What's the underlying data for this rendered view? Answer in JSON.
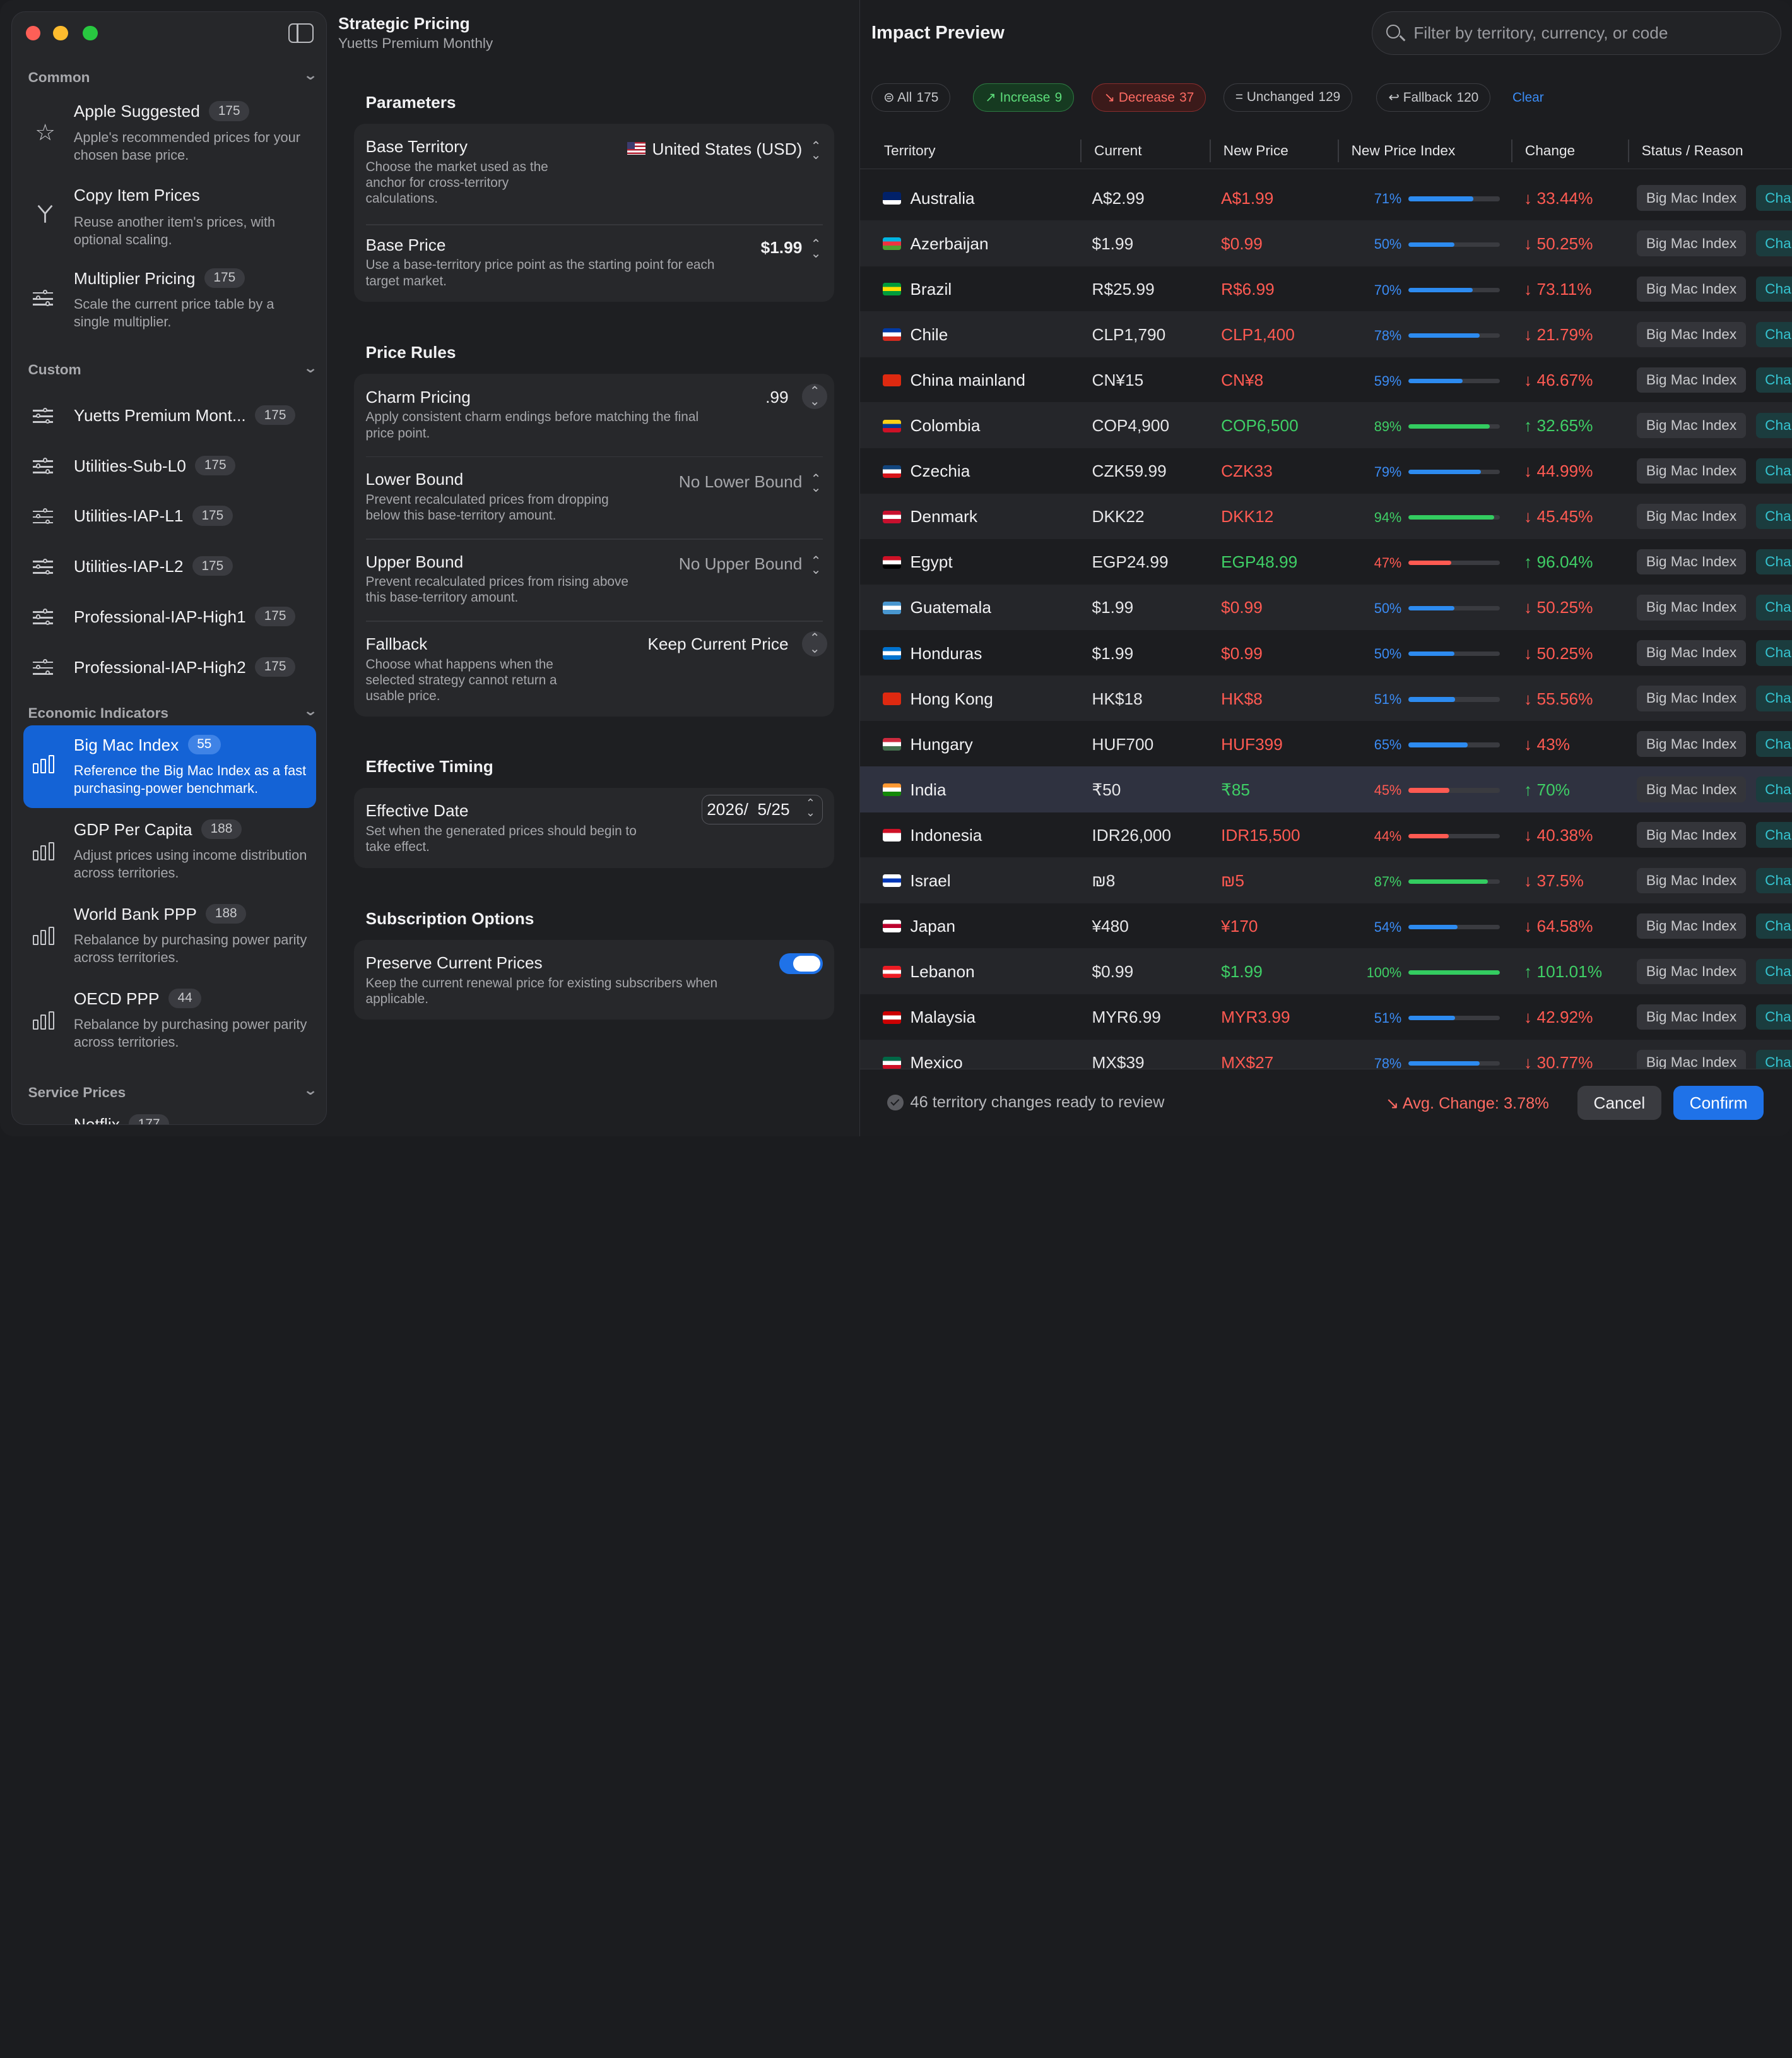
{
  "sidebar": {
    "sections": {
      "common": "Common",
      "custom": "Custom",
      "economic": "Economic Indicators",
      "service": "Service Prices"
    },
    "common_items": [
      {
        "title": "Apple Suggested",
        "badge": "175",
        "desc": "Apple's recommended prices for your chosen base price.",
        "icon": "star-icon"
      },
      {
        "title": "Copy Item Prices",
        "badge": "",
        "desc": "Reuse another item's prices, with optional scaling.",
        "icon": "branch-icon"
      },
      {
        "title": "Multiplier Pricing",
        "badge": "175",
        "desc": "Scale the current price table by a single multiplier.",
        "icon": "sliders-icon"
      }
    ],
    "custom_items": [
      {
        "title": "Yuetts Premium Mont...",
        "badge": "175"
      },
      {
        "title": "Utilities-Sub-L0",
        "badge": "175"
      },
      {
        "title": "Utilities-IAP-L1",
        "badge": "175"
      },
      {
        "title": "Utilities-IAP-L2",
        "badge": "175"
      },
      {
        "title": "Professional-IAP-High1",
        "badge": "175"
      },
      {
        "title": "Professional-IAP-High2",
        "badge": "175"
      }
    ],
    "economic_items": [
      {
        "title": "Big Mac Index",
        "badge": "55",
        "desc": "Reference the Big Mac Index as a fast purchasing-power benchmark.",
        "selected": true
      },
      {
        "title": "GDP Per Capita",
        "badge": "188",
        "desc": "Adjust prices using income distribution across territories."
      },
      {
        "title": "World Bank PPP",
        "badge": "188",
        "desc": "Rebalance by purchasing power parity across territories."
      },
      {
        "title": "OECD PPP",
        "badge": "44",
        "desc": "Rebalance by purchasing power parity across territories."
      }
    ],
    "service_items": [
      {
        "title": "Netflix",
        "badge": "177"
      }
    ]
  },
  "middle": {
    "title": "Strategic Pricing",
    "subtitle": "Yuetts Premium Monthly",
    "parameters": {
      "heading": "Parameters",
      "base_territory": {
        "label": "Base Territory",
        "desc": "Choose the market used as the anchor for cross-territory calculations.",
        "value": "United States (USD)"
      },
      "base_price": {
        "label": "Base Price",
        "desc": "Use a base-territory price point as the starting point for each target market.",
        "value": "$1.99"
      }
    },
    "price_rules": {
      "heading": "Price Rules",
      "charm": {
        "label": "Charm Pricing",
        "desc": "Apply consistent charm endings before matching the final price point.",
        "value": ".99"
      },
      "lower": {
        "label": "Lower Bound",
        "desc": "Prevent recalculated prices from dropping below this base-territory amount.",
        "value": "No Lower Bound"
      },
      "upper": {
        "label": "Upper Bound",
        "desc": "Prevent recalculated prices from rising above this base-territory amount.",
        "value": "No Upper Bound"
      },
      "fallback": {
        "label": "Fallback",
        "desc": "Choose what happens when the selected strategy cannot return a usable price.",
        "value": "Keep Current Price"
      }
    },
    "timing": {
      "heading": "Effective Timing",
      "date": {
        "label": "Effective Date",
        "desc": "Set when the generated prices should begin to take effect.",
        "value": "2026/  5/25"
      }
    },
    "subscription": {
      "heading": "Subscription Options",
      "preserve": {
        "label": "Preserve Current Prices",
        "desc": "Keep the current renewal price for existing subscribers when applicable.",
        "enabled": true
      }
    }
  },
  "right": {
    "title": "Impact Preview",
    "search_placeholder": "Filter by territory, currency, or code",
    "filters": {
      "all": {
        "label": "All",
        "count": "175"
      },
      "increase": {
        "label": "Increase",
        "count": "9"
      },
      "decrease": {
        "label": "Decrease",
        "count": "37"
      },
      "unchanged": {
        "label": "Unchanged",
        "count": "129"
      },
      "fallback": {
        "label": "Fallback",
        "count": "120"
      },
      "clear": "Clear"
    },
    "columns": [
      "Territory",
      "Current",
      "New Price",
      "New Price Index",
      "Change",
      "Status / Reason"
    ],
    "rows": [
      {
        "name": "Australia",
        "current": "A$2.99",
        "new": "A$1.99",
        "index": "71%",
        "idx": 0.71,
        "change": "↓ 33.44%",
        "dir": "down",
        "status": "Big Mac Index",
        "status2": "Cha",
        "flag": [
          "#012169",
          "#012169",
          "#fff"
        ]
      },
      {
        "name": "Azerbaijan",
        "current": "$1.99",
        "new": "$0.99",
        "index": "50%",
        "idx": 0.5,
        "change": "↓ 50.25%",
        "dir": "down",
        "status": "Big Mac Index",
        "status2": "Cha",
        "flag": [
          "#00b5e2",
          "#ef3340",
          "#509e2f"
        ]
      },
      {
        "name": "Brazil",
        "current": "R$25.99",
        "new": "R$6.99",
        "index": "70%",
        "idx": 0.7,
        "change": "↓ 73.11%",
        "dir": "down",
        "status": "Big Mac Index",
        "status2": "Cha",
        "flag": [
          "#009c3b",
          "#ffdf00",
          "#009c3b"
        ]
      },
      {
        "name": "Chile",
        "current": "CLP1,790",
        "new": "CLP1,400",
        "index": "78%",
        "idx": 0.78,
        "change": "↓ 21.79%",
        "dir": "down",
        "status": "Big Mac Index",
        "status2": "Cha",
        "flag": [
          "#0039a6",
          "#fff",
          "#d52b1e"
        ]
      },
      {
        "name": "China mainland",
        "current": "CN¥15",
        "new": "CN¥8",
        "index": "59%",
        "idx": 0.59,
        "change": "↓ 46.67%",
        "dir": "down",
        "status": "Big Mac Index",
        "status2": "Cha",
        "flag": [
          "#de2910",
          "#de2910",
          "#de2910"
        ]
      },
      {
        "name": "Colombia",
        "current": "COP4,900",
        "new": "COP6,500",
        "index": "89%",
        "idx": 0.89,
        "change": "↑ 32.65%",
        "dir": "up",
        "status": "Big Mac Index",
        "status2": "Cha",
        "flag": [
          "#fcd116",
          "#003893",
          "#ce1126"
        ]
      },
      {
        "name": "Czechia",
        "current": "CZK59.99",
        "new": "CZK33",
        "index": "79%",
        "idx": 0.79,
        "change": "↓ 44.99%",
        "dir": "down",
        "status": "Big Mac Index",
        "status2": "Cha",
        "flag": [
          "#11457e",
          "#fff",
          "#d7141a"
        ]
      },
      {
        "name": "Denmark",
        "current": "DKK22",
        "new": "DKK12",
        "index": "94%",
        "idx": 0.94,
        "change": "↓ 45.45%",
        "dir": "down",
        "status": "Big Mac Index",
        "status2": "Cha",
        "flag": [
          "#c8102e",
          "#fff",
          "#c8102e"
        ]
      },
      {
        "name": "Egypt",
        "current": "EGP24.99",
        "new": "EGP48.99",
        "index": "47%",
        "idx": 0.47,
        "change": "↑ 96.04%",
        "dir": "up",
        "status": "Big Mac Index",
        "status2": "Cha",
        "flag": [
          "#ce1126",
          "#fff",
          "#000"
        ]
      },
      {
        "name": "Guatemala",
        "current": "$1.99",
        "new": "$0.99",
        "index": "50%",
        "idx": 0.5,
        "change": "↓ 50.25%",
        "dir": "down",
        "status": "Big Mac Index",
        "status2": "Cha",
        "flag": [
          "#4997d0",
          "#fff",
          "#4997d0"
        ]
      },
      {
        "name": "Honduras",
        "current": "$1.99",
        "new": "$0.99",
        "index": "50%",
        "idx": 0.5,
        "change": "↓ 50.25%",
        "dir": "down",
        "status": "Big Mac Index",
        "status2": "Cha",
        "flag": [
          "#0073cf",
          "#fff",
          "#0073cf"
        ]
      },
      {
        "name": "Hong Kong",
        "current": "HK$18",
        "new": "HK$8",
        "index": "51%",
        "idx": 0.51,
        "change": "↓ 55.56%",
        "dir": "down",
        "status": "Big Mac Index",
        "status2": "Cha",
        "flag": [
          "#de2910",
          "#de2910",
          "#de2910"
        ]
      },
      {
        "name": "Hungary",
        "current": "HUF700",
        "new": "HUF399",
        "index": "65%",
        "idx": 0.65,
        "change": "↓ 43%",
        "dir": "down",
        "status": "Big Mac Index",
        "status2": "Cha",
        "flag": [
          "#cd2a3e",
          "#fff",
          "#436f4d"
        ]
      },
      {
        "name": "India",
        "current": "₹50",
        "new": "₹85",
        "index": "45%",
        "idx": 0.45,
        "change": "↑ 70%",
        "dir": "up",
        "status": "Big Mac Index",
        "status2": "Cha",
        "flag": [
          "#ff9933",
          "#fff",
          "#138808"
        ]
      },
      {
        "name": "Indonesia",
        "current": "IDR26,000",
        "new": "IDR15,500",
        "index": "44%",
        "idx": 0.44,
        "change": "↓ 40.38%",
        "dir": "down",
        "status": "Big Mac Index",
        "status2": "Cha",
        "flag": [
          "#ce1126",
          "#fff",
          "#fff"
        ]
      },
      {
        "name": "Israel",
        "current": "₪8",
        "new": "₪5",
        "index": "87%",
        "idx": 0.87,
        "change": "↓ 37.5%",
        "dir": "down",
        "status": "Big Mac Index",
        "status2": "Cha",
        "flag": [
          "#fff",
          "#0038b8",
          "#fff"
        ]
      },
      {
        "name": "Japan",
        "current": "¥480",
        "new": "¥170",
        "index": "54%",
        "idx": 0.54,
        "change": "↓ 64.58%",
        "dir": "down",
        "status": "Big Mac Index",
        "status2": "Cha",
        "flag": [
          "#fff",
          "#bc002d",
          "#fff"
        ]
      },
      {
        "name": "Lebanon",
        "current": "$0.99",
        "new": "$1.99",
        "index": "100%",
        "idx": 1.0,
        "change": "↑ 101.01%",
        "dir": "up",
        "status": "Big Mac Index",
        "status2": "Cha",
        "flag": [
          "#ed1c24",
          "#fff",
          "#ed1c24"
        ]
      },
      {
        "name": "Malaysia",
        "current": "MYR6.99",
        "new": "MYR3.99",
        "index": "51%",
        "idx": 0.51,
        "change": "↓ 42.92%",
        "dir": "down",
        "status": "Big Mac Index",
        "status2": "Cha",
        "flag": [
          "#cc0001",
          "#fff",
          "#cc0001"
        ]
      },
      {
        "name": "Mexico",
        "current": "MX$39",
        "new": "MX$27",
        "index": "78%",
        "idx": 0.78,
        "change": "↓ 30.77%",
        "dir": "down",
        "status": "Big Mac Index",
        "status2": "Cha",
        "flag": [
          "#006847",
          "#fff",
          "#ce1126"
        ]
      }
    ],
    "footer": {
      "message": "46 territory changes ready to review",
      "avg": "↘ Avg. Change: 3.78%",
      "cancel": "Cancel",
      "confirm": "Confirm"
    }
  }
}
